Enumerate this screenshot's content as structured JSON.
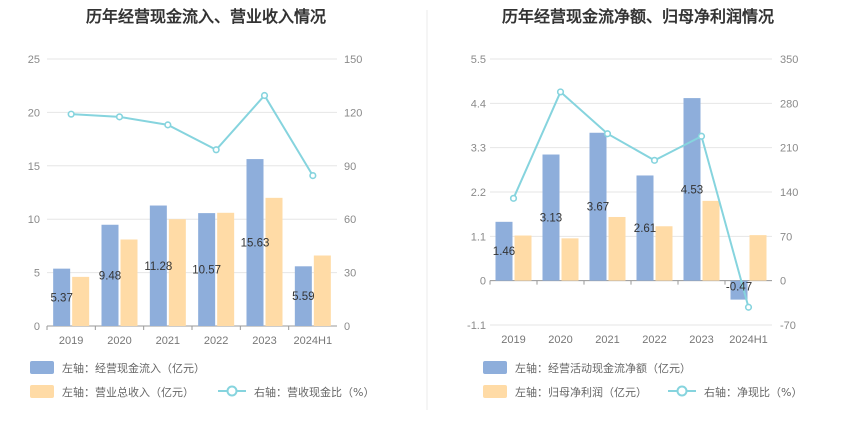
{
  "colors": {
    "bar_primary": "#8eaedb",
    "bar_secondary": "#ffdba6",
    "line": "#86d4de",
    "divider": "#e8e8e8"
  },
  "chart_data": [
    {
      "type": "bar",
      "title": "历年经营现金流入、营业收入情况",
      "categories": [
        "2019",
        "2020",
        "2021",
        "2022",
        "2023",
        "2024H1"
      ],
      "left_axis": {
        "ticks": [
          "0",
          "5",
          "10",
          "15",
          "20",
          "25"
        ],
        "ylim": [
          0,
          25
        ]
      },
      "right_axis": {
        "ticks": [
          "0",
          "30",
          "60",
          "90",
          "120",
          "150"
        ],
        "ylim": [
          0,
          150
        ]
      },
      "series": [
        {
          "name": "左轴：经营现金流入（亿元）",
          "type": "bar",
          "axis": "left",
          "color": "#8eaedb",
          "values": [
            5.37,
            9.48,
            11.28,
            10.57,
            15.63,
            5.59
          ],
          "labels": [
            "5.37",
            "9.48",
            "11.28",
            "10.57",
            "15.63",
            "5.59"
          ]
        },
        {
          "name": "左轴：营业总收入（亿元）",
          "type": "bar",
          "axis": "left",
          "color": "#ffdba6",
          "values": [
            4.6,
            8.1,
            10.0,
            10.6,
            12.0,
            6.6
          ]
        },
        {
          "name": "右轴：营收现金比（%）",
          "type": "line",
          "axis": "right",
          "color": "#86d4de",
          "values": [
            119,
            117.5,
            113,
            99,
            129.5,
            84.5
          ]
        }
      ],
      "legend_position": "bottom-left",
      "grid": true
    },
    {
      "type": "bar",
      "title": "历年经营现金流净额、归母净利润情况",
      "categories": [
        "2019",
        "2020",
        "2021",
        "2022",
        "2023",
        "2024H1"
      ],
      "left_axis": {
        "ticks": [
          "-1.1",
          "0",
          "1.1",
          "2.2",
          "3.3",
          "4.4",
          "5.5"
        ],
        "ylim": [
          -1.1,
          5.5
        ]
      },
      "right_axis": {
        "ticks": [
          "-70",
          "0",
          "70",
          "140",
          "210",
          "280",
          "350"
        ],
        "ylim": [
          -70,
          350
        ]
      },
      "series": [
        {
          "name": "左轴：经营活动现金流净额（亿元）",
          "type": "bar",
          "axis": "left",
          "color": "#8eaedb",
          "values": [
            1.46,
            3.13,
            3.67,
            2.61,
            4.53,
            -0.47
          ],
          "labels": [
            "1.46",
            "3.13",
            "3.67",
            "2.61",
            "4.53",
            "-0.47"
          ]
        },
        {
          "name": "左轴：归母净利润（亿元）",
          "type": "bar",
          "axis": "left",
          "color": "#ffdba6",
          "values": [
            1.12,
            1.05,
            1.58,
            1.35,
            1.98,
            1.13
          ]
        },
        {
          "name": "右轴：净现比（%）",
          "type": "line",
          "axis": "right",
          "color": "#86d4de",
          "values": [
            130,
            298,
            232,
            190,
            228,
            -42
          ]
        }
      ],
      "legend_position": "bottom-left",
      "grid": true
    }
  ]
}
